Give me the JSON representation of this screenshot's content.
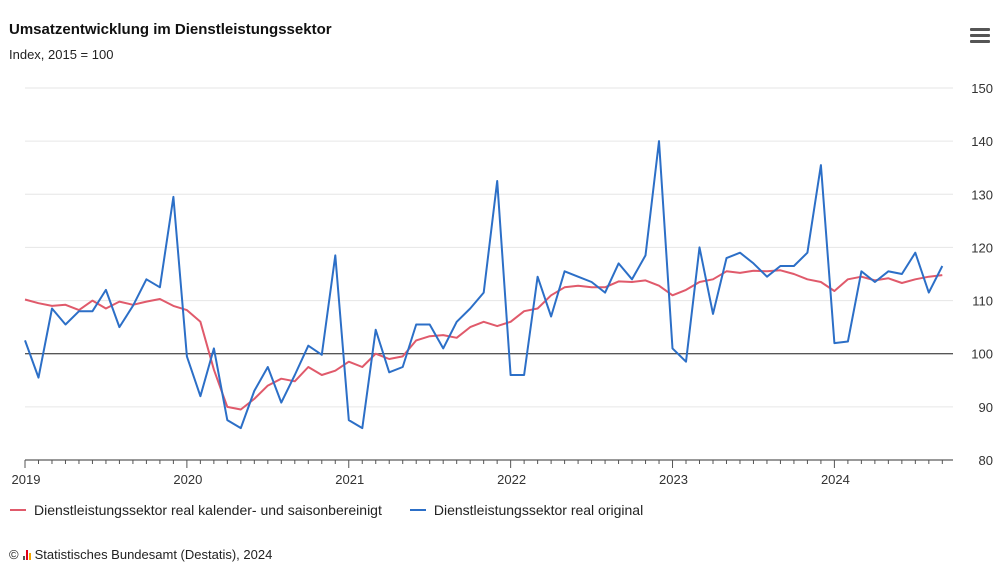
{
  "header": {
    "title": "Umsatzentwicklung im Dienstleistungssektor",
    "subtitle": "Index, 2015 = 100",
    "menu_icon": "hamburger-menu-icon"
  },
  "legend": {
    "items": [
      {
        "label": "Dienstleistungssektor real kalender- und saisonbereinigt",
        "color": "#e05a6b"
      },
      {
        "label": "Dienstleistungssektor real original",
        "color": "#2c6fc7"
      }
    ]
  },
  "footer": {
    "copyright_symbol": "©",
    "credit": "Statistisches Bundesamt (Destatis), 2024",
    "icon": "destatis-bars-icon"
  },
  "chart_data": {
    "type": "line",
    "title": "Umsatzentwicklung im Dienstleistungssektor",
    "subtitle": "Index, 2015 = 100",
    "ylim": [
      80,
      150
    ],
    "yticks": [
      80,
      90,
      100,
      110,
      120,
      130,
      140,
      150
    ],
    "xtick_labels": [
      "2019",
      "2020",
      "2021",
      "2022",
      "2023",
      "2024"
    ],
    "reference_line": 100,
    "grid": true,
    "legend_position": "bottom",
    "x": [
      "2019-01",
      "2019-02",
      "2019-03",
      "2019-04",
      "2019-05",
      "2019-06",
      "2019-07",
      "2019-08",
      "2019-09",
      "2019-10",
      "2019-11",
      "2019-12",
      "2020-01",
      "2020-02",
      "2020-03",
      "2020-04",
      "2020-05",
      "2020-06",
      "2020-07",
      "2020-08",
      "2020-09",
      "2020-10",
      "2020-11",
      "2020-12",
      "2021-01",
      "2021-02",
      "2021-03",
      "2021-04",
      "2021-05",
      "2021-06",
      "2021-07",
      "2021-08",
      "2021-09",
      "2021-10",
      "2021-11",
      "2021-12",
      "2022-01",
      "2022-02",
      "2022-03",
      "2022-04",
      "2022-05",
      "2022-06",
      "2022-07",
      "2022-08",
      "2022-09",
      "2022-10",
      "2022-11",
      "2022-12",
      "2023-01",
      "2023-02",
      "2023-03",
      "2023-04",
      "2023-05",
      "2023-06",
      "2023-07",
      "2023-08",
      "2023-09",
      "2023-10",
      "2023-11",
      "2023-12",
      "2024-01",
      "2024-02",
      "2024-03",
      "2024-04",
      "2024-05",
      "2024-06",
      "2024-07",
      "2024-08",
      "2024-09"
    ],
    "series": [
      {
        "name": "Dienstleistungssektor real kalender- und saisonbereinigt",
        "color": "#e05a6b",
        "values": [
          110.2,
          109.5,
          109.0,
          109.2,
          108.2,
          110.0,
          108.5,
          109.8,
          109.2,
          109.8,
          110.3,
          109.0,
          108.2,
          106.0,
          97.0,
          90.0,
          89.5,
          91.5,
          94.0,
          95.3,
          94.8,
          97.5,
          96.0,
          96.8,
          98.5,
          97.5,
          100.0,
          99.0,
          99.5,
          102.5,
          103.3,
          103.5,
          103.0,
          105.0,
          106.0,
          105.2,
          106.0,
          108.0,
          108.5,
          111.0,
          112.5,
          112.8,
          112.5,
          112.5,
          113.6,
          113.5,
          113.8,
          112.8,
          111.0,
          112.0,
          113.5,
          114.0,
          115.5,
          115.2,
          115.6,
          115.5,
          115.7,
          115.0,
          114.0,
          113.5,
          111.8,
          114.0,
          114.5,
          113.8,
          114.2,
          113.3,
          114.0,
          114.5,
          114.8
        ]
      },
      {
        "name": "Dienstleistungssektor real original",
        "color": "#2c6fc7",
        "values": [
          102.5,
          95.5,
          108.5,
          105.5,
          108.0,
          108.0,
          112.0,
          105.0,
          109.0,
          114.0,
          112.5,
          129.5,
          99.5,
          92.0,
          101.0,
          87.5,
          86.0,
          93.0,
          97.5,
          90.8,
          96.0,
          101.5,
          99.8,
          118.5,
          87.5,
          86.0,
          104.5,
          96.5,
          97.5,
          105.5,
          105.5,
          101.0,
          106.0,
          108.5,
          111.5,
          132.5,
          96.0,
          96.0,
          114.5,
          107.0,
          115.5,
          114.5,
          113.5,
          111.5,
          117.0,
          114.0,
          118.5,
          140.0,
          101.0,
          98.5,
          120.0,
          107.5,
          118.0,
          119.0,
          117.0,
          114.5,
          116.5,
          116.5,
          119.0,
          135.5,
          102.0,
          102.3,
          115.5,
          113.5,
          115.5,
          115.0,
          119.0,
          111.5,
          116.5
        ]
      }
    ]
  }
}
